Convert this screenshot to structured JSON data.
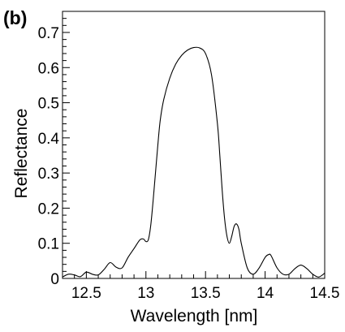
{
  "panel_label": "(b)",
  "chart_data": {
    "type": "line",
    "xlabel": "Wavelength [nm]",
    "ylabel": "Reflectance",
    "xlim": [
      12.3,
      14.5
    ],
    "ylim": [
      0,
      0.76
    ],
    "x_ticks": [
      12.5,
      13.0,
      13.5,
      14.0,
      14.5
    ],
    "x_tick_labels": [
      "12.5",
      "13",
      "13.5",
      "14",
      "14.5"
    ],
    "y_ticks": [
      0,
      0.1,
      0.2,
      0.3,
      0.4,
      0.5,
      0.6,
      0.7
    ],
    "y_tick_labels": [
      "0",
      "0.1",
      "0.2",
      "0.3",
      "0.4",
      "0.5",
      "0.6",
      "0.7"
    ],
    "grid": false,
    "series": [
      {
        "color": "#000000",
        "x": [
          12.3,
          12.35,
          12.4,
          12.45,
          12.5,
          12.55,
          12.6,
          12.65,
          12.7,
          12.75,
          12.8,
          12.85,
          12.9,
          12.95,
          12.98,
          13.0,
          13.02,
          13.04,
          13.06,
          13.08,
          13.1,
          13.12,
          13.15,
          13.2,
          13.25,
          13.3,
          13.35,
          13.4,
          13.45,
          13.5,
          13.55,
          13.6,
          13.62,
          13.64,
          13.66,
          13.68,
          13.7,
          13.72,
          13.74,
          13.76,
          13.78,
          13.8,
          13.85,
          13.9,
          13.95,
          14.0,
          14.03,
          14.05,
          14.1,
          14.15,
          14.2,
          14.25,
          14.3,
          14.35,
          14.4,
          14.45,
          14.5
        ],
        "y": [
          0.004,
          0.012,
          0.01,
          0.005,
          0.018,
          0.012,
          0.01,
          0.026,
          0.045,
          0.032,
          0.03,
          0.06,
          0.085,
          0.11,
          0.112,
          0.105,
          0.11,
          0.15,
          0.22,
          0.3,
          0.38,
          0.45,
          0.51,
          0.57,
          0.61,
          0.635,
          0.65,
          0.657,
          0.656,
          0.64,
          0.58,
          0.44,
          0.35,
          0.25,
          0.17,
          0.12,
          0.1,
          0.12,
          0.148,
          0.155,
          0.14,
          0.1,
          0.03,
          0.012,
          0.03,
          0.06,
          0.068,
          0.065,
          0.03,
          0.012,
          0.012,
          0.028,
          0.038,
          0.028,
          0.012,
          0.004,
          0.015
        ]
      }
    ]
  }
}
